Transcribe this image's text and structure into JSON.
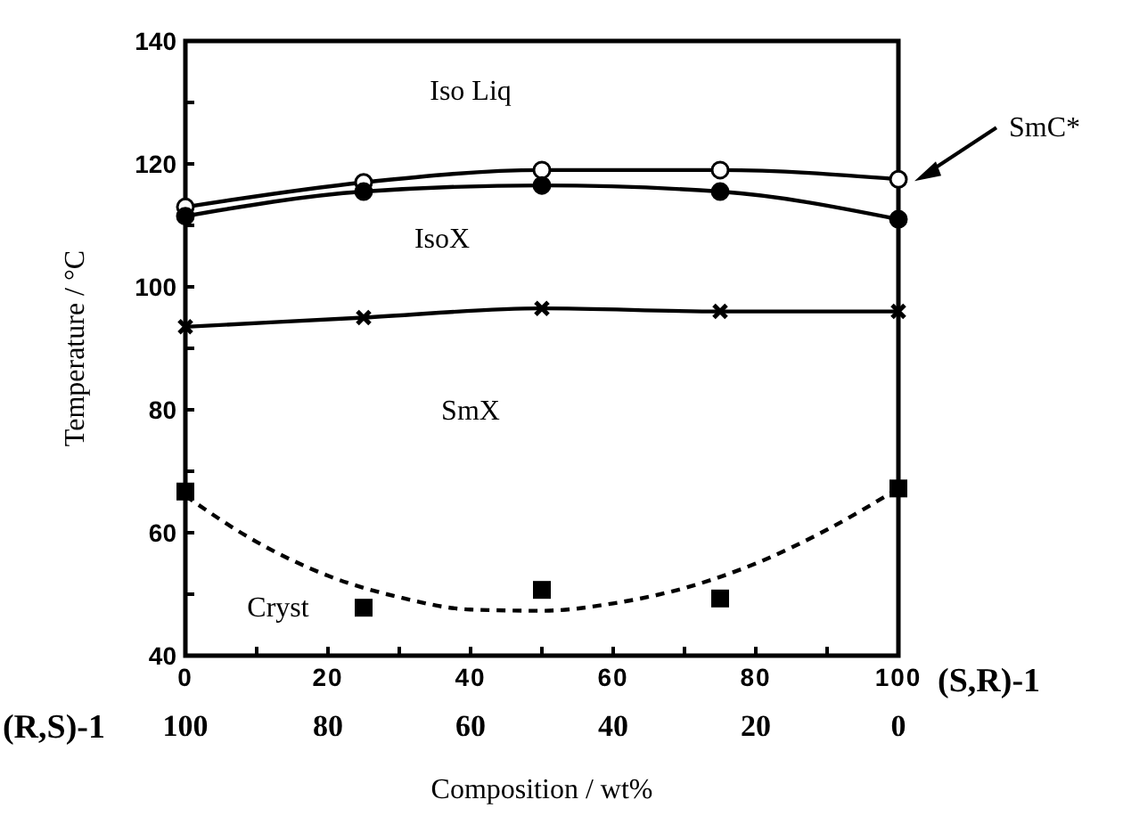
{
  "chart_data": {
    "type": "line",
    "xlabel": "Composition / wt%",
    "ylabel": "Temperature / °C",
    "x2label": "(R,S)-1",
    "xlim": [
      0,
      100
    ],
    "xticks": [
      0,
      {
        "value": 10,
        "label": null
      },
      20,
      {
        "value": 30,
        "label": null
      },
      40,
      {
        "value": 50,
        "label": null
      },
      60,
      {
        "value": 70,
        "label": null
      },
      80,
      {
        "value": 90,
        "label": null
      },
      100
    ],
    "x2lim": [
      100,
      0
    ],
    "x2ticks": [
      100,
      80,
      60,
      40,
      20,
      0
    ],
    "ylim": [
      40,
      140
    ],
    "yticks": [
      40,
      {
        "value": 50,
        "label": null
      },
      60,
      {
        "value": 70,
        "label": null
      },
      80,
      {
        "value": 90,
        "label": null
      },
      100,
      {
        "value": 110,
        "label": null
      },
      120,
      {
        "value": 130,
        "label": null
      },
      140
    ],
    "grid": false,
    "series": [
      {
        "color": "#000000",
        "marker": "circle",
        "line_style": "solid",
        "x": [
          0,
          25,
          50,
          75,
          100
        ],
        "values": [
          113,
          117,
          119,
          119,
          117.5
        ]
      },
      {
        "color": "#000000",
        "marker": "circle",
        "line_style": "solid",
        "x": [
          0,
          25,
          50,
          75,
          100
        ],
        "values": [
          111.5,
          115.5,
          116.5,
          115.5,
          111
        ]
      },
      {
        "color": "#000000",
        "marker": "cross",
        "line_style": "solid",
        "x": [
          0,
          25,
          50,
          75,
          100
        ],
        "values": [
          93.5,
          95,
          96.5,
          96,
          96
        ]
      },
      {
        "type": "scatter",
        "color": "#000000",
        "marker": "square",
        "x": [
          0,
          25,
          50,
          75,
          100
        ],
        "values": [
          66.7,
          47.8,
          50.7,
          49.3,
          67.2
        ]
      },
      {
        "type": "line",
        "color": "#000000",
        "marker": "none",
        "line_style": "dashed",
        "x": [
          0,
          10,
          20,
          30,
          40,
          50,
          60,
          70,
          80,
          90,
          100
        ],
        "values": [
          66,
          58.5,
          53,
          49.5,
          47.5,
          47.3,
          48.5,
          51,
          55,
          60.5,
          67.2
        ]
      }
    ],
    "annotations": [
      "Iso Liq",
      "IsoX",
      "SmX",
      "Cryst",
      "SmC*",
      "(S,R)-1"
    ]
  }
}
